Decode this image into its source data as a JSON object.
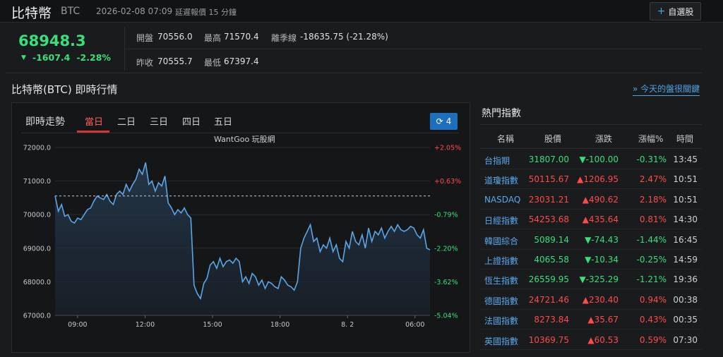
{
  "header": {
    "title": "比特幣",
    "code": "BTC",
    "datetime": "2026-02-08 07:09",
    "delay_note": "延遲報價 15 分鐘",
    "watch_button": "自選股"
  },
  "quote": {
    "price": "68948.3",
    "change": "-1607.4",
    "change_pct": "-2.28%",
    "open_label": "開盤",
    "open": "70556.0",
    "high_label": "最高",
    "high": "71570.4",
    "season_label": "離季線",
    "season": "-18635.75 (-21.28%)",
    "prev_label": "昨收",
    "prev": "70555.7",
    "low_label": "最低",
    "low": "67397.4"
  },
  "section": {
    "title": "比特幣(BTC) 即時行情",
    "news_link": "» 今天的盤很關鍵"
  },
  "chart_panel": {
    "label": "即時走勢",
    "tabs": [
      "當日",
      "二日",
      "三日",
      "四日",
      "五日"
    ],
    "active_tab": 0,
    "refresh_count": "4",
    "watermark": "WantGoo 玩股網"
  },
  "chart_data": {
    "type": "area",
    "x_tick_labels": [
      "09:00",
      "12:00",
      "15:00",
      "18:00",
      "8. 2",
      "06:00"
    ],
    "y_left_ticks": [
      "72000.0",
      "71000.0",
      "70000.0",
      "69000.0",
      "68000.0",
      "67000.0"
    ],
    "y_left_values": [
      72000,
      71000,
      70000,
      69000,
      68000,
      67000
    ],
    "y_right_ticks": [
      "+2.05%",
      "+0.63%",
      "-0.79%",
      "-2.20%",
      "-3.62%",
      "-5.04%"
    ],
    "ylim": [
      67000,
      72000
    ],
    "reference_line": 70555.7,
    "grid": true,
    "colors": {
      "line": "#5aa6e6",
      "fill_top": "#263b50",
      "up": "#ff4a4a",
      "down": "#36e07a",
      "reference": "#cfcfcf"
    },
    "series": [
      {
        "x": [
          0,
          0.5,
          1,
          1.5,
          2,
          2.5,
          3,
          3.5,
          4,
          4.5,
          5,
          5.5,
          6,
          6.5,
          7,
          7.5,
          8,
          8.5,
          9,
          9.5,
          10,
          10.5,
          11,
          11.5,
          12,
          12.5,
          13,
          13.5,
          14,
          14.5,
          15,
          15.5,
          16,
          16.5,
          17,
          17.5,
          18,
          18.5,
          19,
          19.5,
          20,
          20.5,
          21,
          21.5,
          22,
          22.5,
          23,
          23.5,
          24,
          24.5,
          25,
          25.5,
          26,
          26.5,
          27,
          27.5,
          28,
          28.5,
          29,
          29.5,
          30,
          30.5,
          31,
          31.5,
          32,
          32.5,
          33,
          33.5,
          34,
          34.5,
          35,
          35.5,
          36,
          36.5,
          37,
          37.5,
          38,
          38.5,
          39,
          39.5,
          40,
          40.5,
          41,
          41.5,
          42,
          42.5,
          43,
          43.5,
          44,
          44.5,
          45,
          45.5,
          46,
          46.5,
          47,
          47.5,
          48,
          48.5,
          49,
          49.5,
          50,
          50.5,
          51,
          51.5,
          52,
          52.5,
          53,
          53.5,
          54,
          54.5,
          55,
          55.5,
          56,
          56.5,
          57,
          57.5,
          58
        ],
        "y": [
          70560,
          70100,
          70300,
          69950,
          70000,
          69800,
          69750,
          69900,
          69850,
          70000,
          70150,
          70200,
          70400,
          70550,
          70500,
          70450,
          70600,
          70400,
          70300,
          70600,
          70700,
          70600,
          70900,
          70700,
          70900,
          71050,
          71350,
          71200,
          71550,
          70900,
          71000,
          70700,
          70950,
          70850,
          71150,
          70350,
          70200,
          70000,
          70150,
          70050,
          70200,
          70000,
          69900,
          67900,
          67650,
          67500,
          67950,
          68100,
          68500,
          68600,
          68400,
          68700,
          68450,
          68600,
          68650,
          68550,
          68700,
          68600,
          68000,
          68150,
          67950,
          68250,
          68150,
          67900,
          68050,
          67800,
          68000,
          67950,
          67850,
          67800,
          68150,
          68050,
          67900,
          67850,
          67750,
          68000,
          69000,
          69300,
          69500,
          69700,
          69200,
          69300,
          68900,
          69100,
          69000,
          69300,
          68900,
          69100,
          68700,
          68600,
          69200,
          69000,
          69500,
          69200,
          69100,
          69400,
          69000,
          69600,
          69200,
          69500,
          69400,
          69600,
          69300,
          69500,
          69650,
          69500,
          69700,
          69550,
          69500,
          69550,
          69650,
          69600,
          69400,
          69300,
          69550,
          69000,
          68950
        ]
      }
    ]
  },
  "hot_indices": {
    "title": "熱門指數",
    "columns": [
      "名稱",
      "股價",
      "漲跌",
      "漲幅%",
      "時間"
    ],
    "rows": [
      {
        "name": "台指期",
        "price": "31807.00",
        "change": "▼-100.00",
        "pct": "-0.31%",
        "time": "13:45",
        "dir": "down"
      },
      {
        "name": "道瓊指數",
        "price": "50115.67",
        "change": "▲1206.95",
        "pct": "2.47%",
        "time": "10:51",
        "dir": "up"
      },
      {
        "name": "NASDAQ",
        "price": "23031.21",
        "change": "▲490.62",
        "pct": "2.18%",
        "time": "10:51",
        "dir": "up"
      },
      {
        "name": "日經指數",
        "price": "54253.68",
        "change": "▲435.64",
        "pct": "0.81%",
        "time": "14:30",
        "dir": "up"
      },
      {
        "name": "韓國綜合",
        "price": "5089.14",
        "change": "▼-74.43",
        "pct": "-1.44%",
        "time": "16:45",
        "dir": "down"
      },
      {
        "name": "上證指數",
        "price": "4065.58",
        "change": "▼-10.34",
        "pct": "-0.25%",
        "time": "14:59",
        "dir": "down"
      },
      {
        "name": "恆生指數",
        "price": "26559.95",
        "change": "▼-325.29",
        "pct": "-1.21%",
        "time": "19:36",
        "dir": "down"
      },
      {
        "name": "德國指數",
        "price": "24721.46",
        "change": "▲230.40",
        "pct": "0.94%",
        "time": "00:38",
        "dir": "up"
      },
      {
        "name": "法國指數",
        "price": "8273.84",
        "change": "▲35.67",
        "pct": "0.43%",
        "time": "00:35",
        "dir": "up"
      },
      {
        "name": "英國指數",
        "price": "10369.75",
        "change": "▲60.53",
        "pct": "0.59%",
        "time": "07:30",
        "dir": "up"
      }
    ]
  }
}
